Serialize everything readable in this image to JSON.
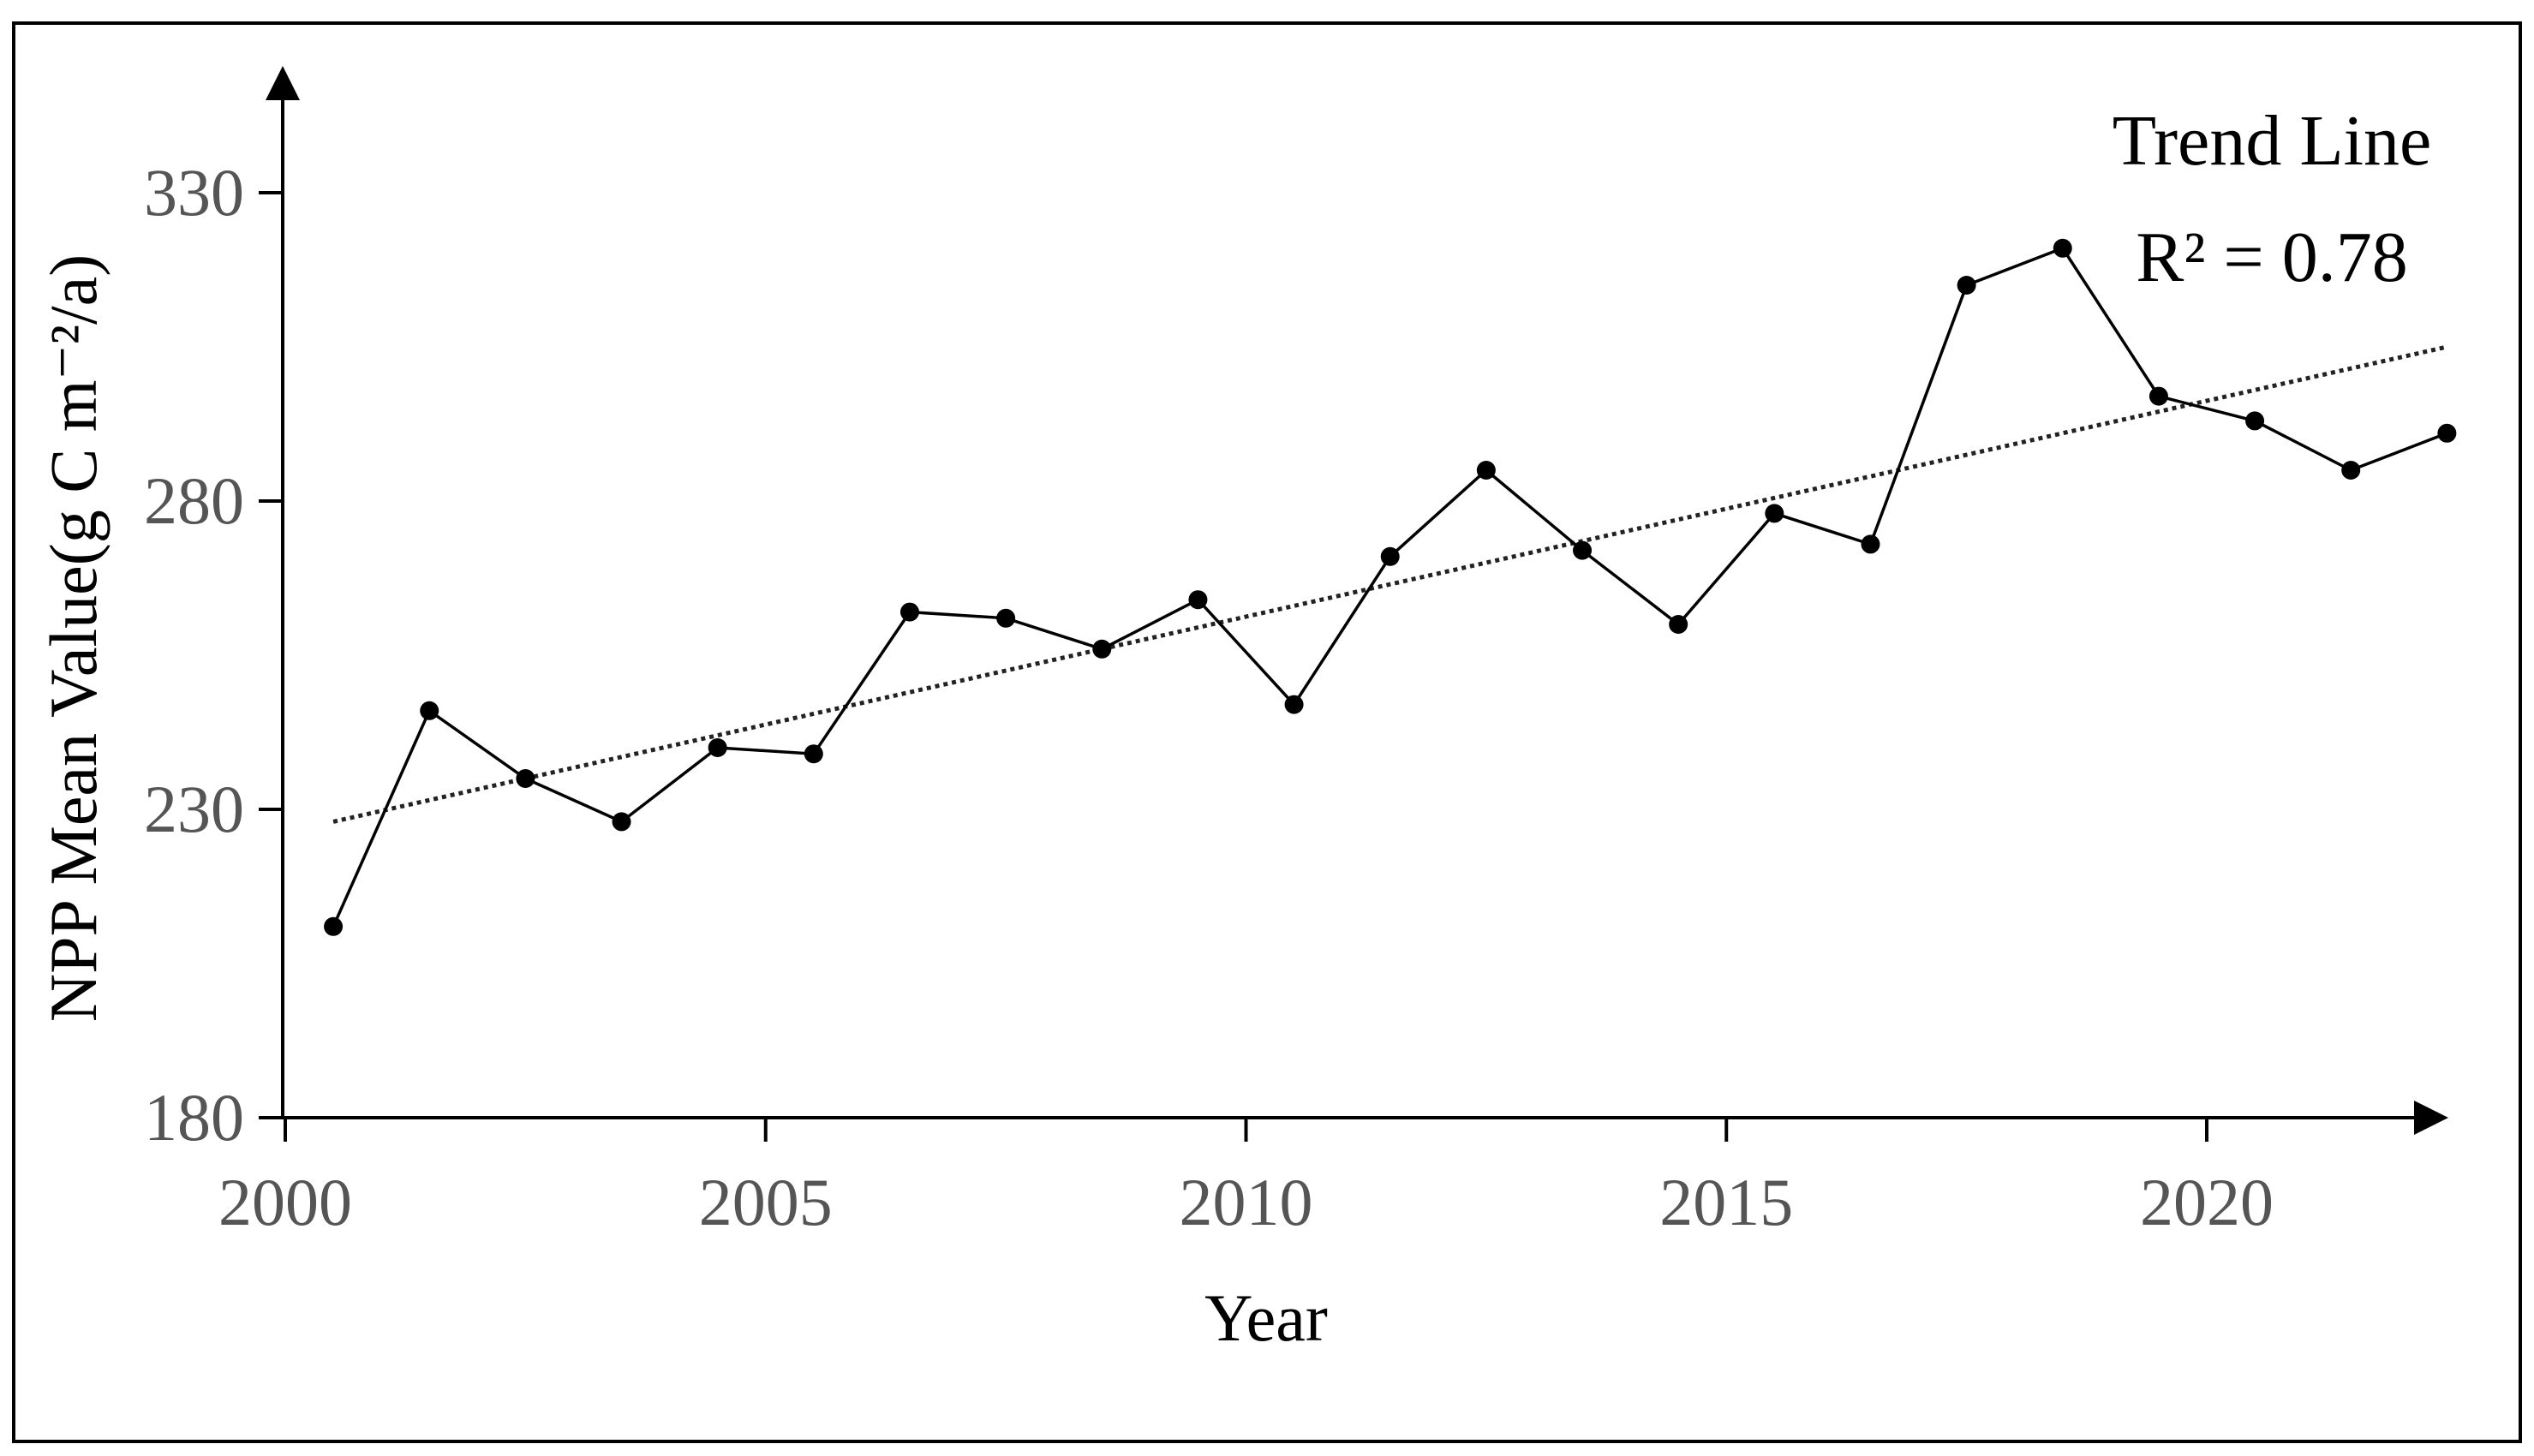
{
  "chart_data": {
    "type": "line",
    "xlabel": "Year",
    "ylabel": "NPP Mean Value(g C m⁻²/a)",
    "xlim": [
      2000,
      2022.8
    ],
    "ylim": [
      180,
      350
    ],
    "x_ticks": [
      2000,
      2005,
      2010,
      2015,
      2020
    ],
    "y_ticks": [
      180,
      230,
      280,
      330
    ],
    "grid": false,
    "legend": "none",
    "series": [
      {
        "color": "#000000",
        "x": [
          2000.5,
          2001.5,
          2002.5,
          2003.5,
          2004.5,
          2005.5,
          2006.5,
          2007.5,
          2008.5,
          2009.5,
          2010.5,
          2011.5,
          2012.5,
          2013.5,
          2014.5,
          2015.5,
          2016.5,
          2017.5,
          2018.5,
          2019.5,
          2020.5,
          2021.5,
          2022.5
        ],
        "values": [
          211,
          246,
          235,
          228,
          240,
          239,
          262,
          261,
          256,
          264,
          247,
          271,
          285,
          272,
          260,
          278,
          273,
          315,
          321,
          297,
          293,
          285,
          291
        ]
      }
    ],
    "trend_line": {
      "color": "#222222",
      "x": [
        2000.5,
        2022.5
      ],
      "values": [
        228,
        305
      ]
    },
    "annotations": {
      "trend_label": "Trend Line",
      "r2_label": "R² = 0.78"
    }
  }
}
